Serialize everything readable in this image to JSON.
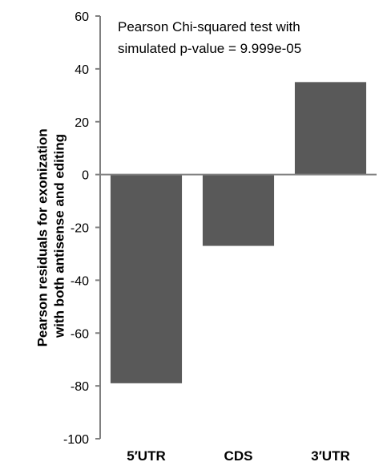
{
  "chart_data": {
    "type": "bar",
    "categories": [
      "5′UTR",
      "CDS",
      "3′UTR"
    ],
    "values": [
      -79,
      -27,
      35
    ],
    "title": "",
    "xlabel": "",
    "ylabel_lines": [
      "Pearson residuals for exonization",
      "with both antisense and editing"
    ],
    "ylim": [
      -100,
      60
    ],
    "yticks": [
      60,
      40,
      20,
      0,
      -20,
      -40,
      -60,
      -80,
      -100
    ],
    "annotation_lines": [
      "Pearson Chi-squared test with",
      "simulated p-value = 9.999e-05"
    ],
    "grid": false,
    "bar_color": "#595959"
  }
}
